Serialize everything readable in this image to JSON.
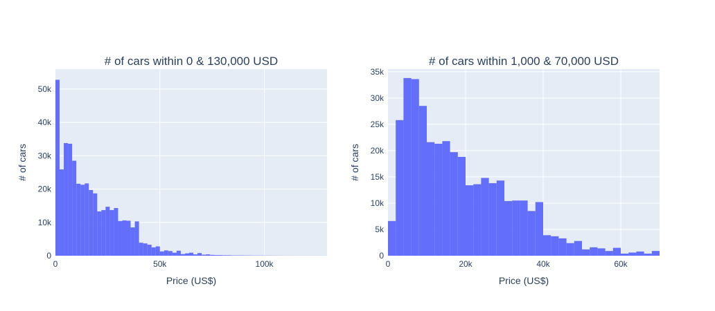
{
  "colors": {
    "plot_bg": "#e5ecf6",
    "grid": "#ffffff",
    "bar": "#636efa",
    "text": "#2a3f5f"
  },
  "chart_data": [
    {
      "type": "bar",
      "title": "# of cars within 0 & 130,000 USD",
      "xlabel": "Price (US$)",
      "ylabel": "# of cars",
      "xlim": [
        0,
        130000
      ],
      "ylim": [
        0,
        56000
      ],
      "grid": true,
      "bin_width": 2000,
      "x_ticks": [
        0,
        50000,
        100000
      ],
      "x_tick_labels": [
        "0",
        "50k",
        "100k"
      ],
      "y_ticks": [
        0,
        10000,
        20000,
        30000,
        40000,
        50000
      ],
      "y_tick_labels": [
        "0",
        "10k",
        "20k",
        "30k",
        "40k",
        "50k"
      ],
      "values": [
        52800,
        25900,
        33800,
        33600,
        28500,
        21600,
        21300,
        21700,
        19700,
        18700,
        13300,
        13700,
        14700,
        13700,
        14300,
        10400,
        10600,
        10500,
        8500,
        10300,
        3900,
        3700,
        3300,
        2500,
        2800,
        1300,
        1600,
        1400,
        900,
        1500,
        500,
        700,
        900,
        400,
        800,
        300,
        400,
        250,
        200,
        200,
        150,
        150,
        100,
        100,
        100,
        80,
        80,
        60,
        60,
        50,
        40,
        40,
        30,
        30,
        20,
        20,
        20,
        10,
        10,
        10,
        10,
        10,
        10,
        10,
        10
      ]
    },
    {
      "type": "bar",
      "title": "# of cars within 1,000 & 70,000 USD",
      "xlabel": "Price (US$)",
      "ylabel": "# of cars",
      "xlim": [
        0,
        70000
      ],
      "ylim": [
        0,
        35500
      ],
      "grid": true,
      "bin_width": 2000,
      "x_ticks": [
        0,
        20000,
        40000,
        60000
      ],
      "x_tick_labels": [
        "0",
        "20k",
        "40k",
        "60k"
      ],
      "y_ticks": [
        0,
        5000,
        10000,
        15000,
        20000,
        25000,
        30000,
        35000
      ],
      "y_tick_labels": [
        "0",
        "5k",
        "10k",
        "15k",
        "20k",
        "25k",
        "30k",
        "35k"
      ],
      "values": [
        6600,
        25800,
        33800,
        33600,
        28500,
        21600,
        21300,
        21800,
        19700,
        18800,
        13400,
        13600,
        14800,
        13800,
        14300,
        10400,
        10500,
        10500,
        8500,
        10200,
        3900,
        3700,
        3300,
        2400,
        2800,
        1200,
        1600,
        1400,
        900,
        1500,
        400,
        600,
        800,
        400,
        900
      ]
    }
  ]
}
